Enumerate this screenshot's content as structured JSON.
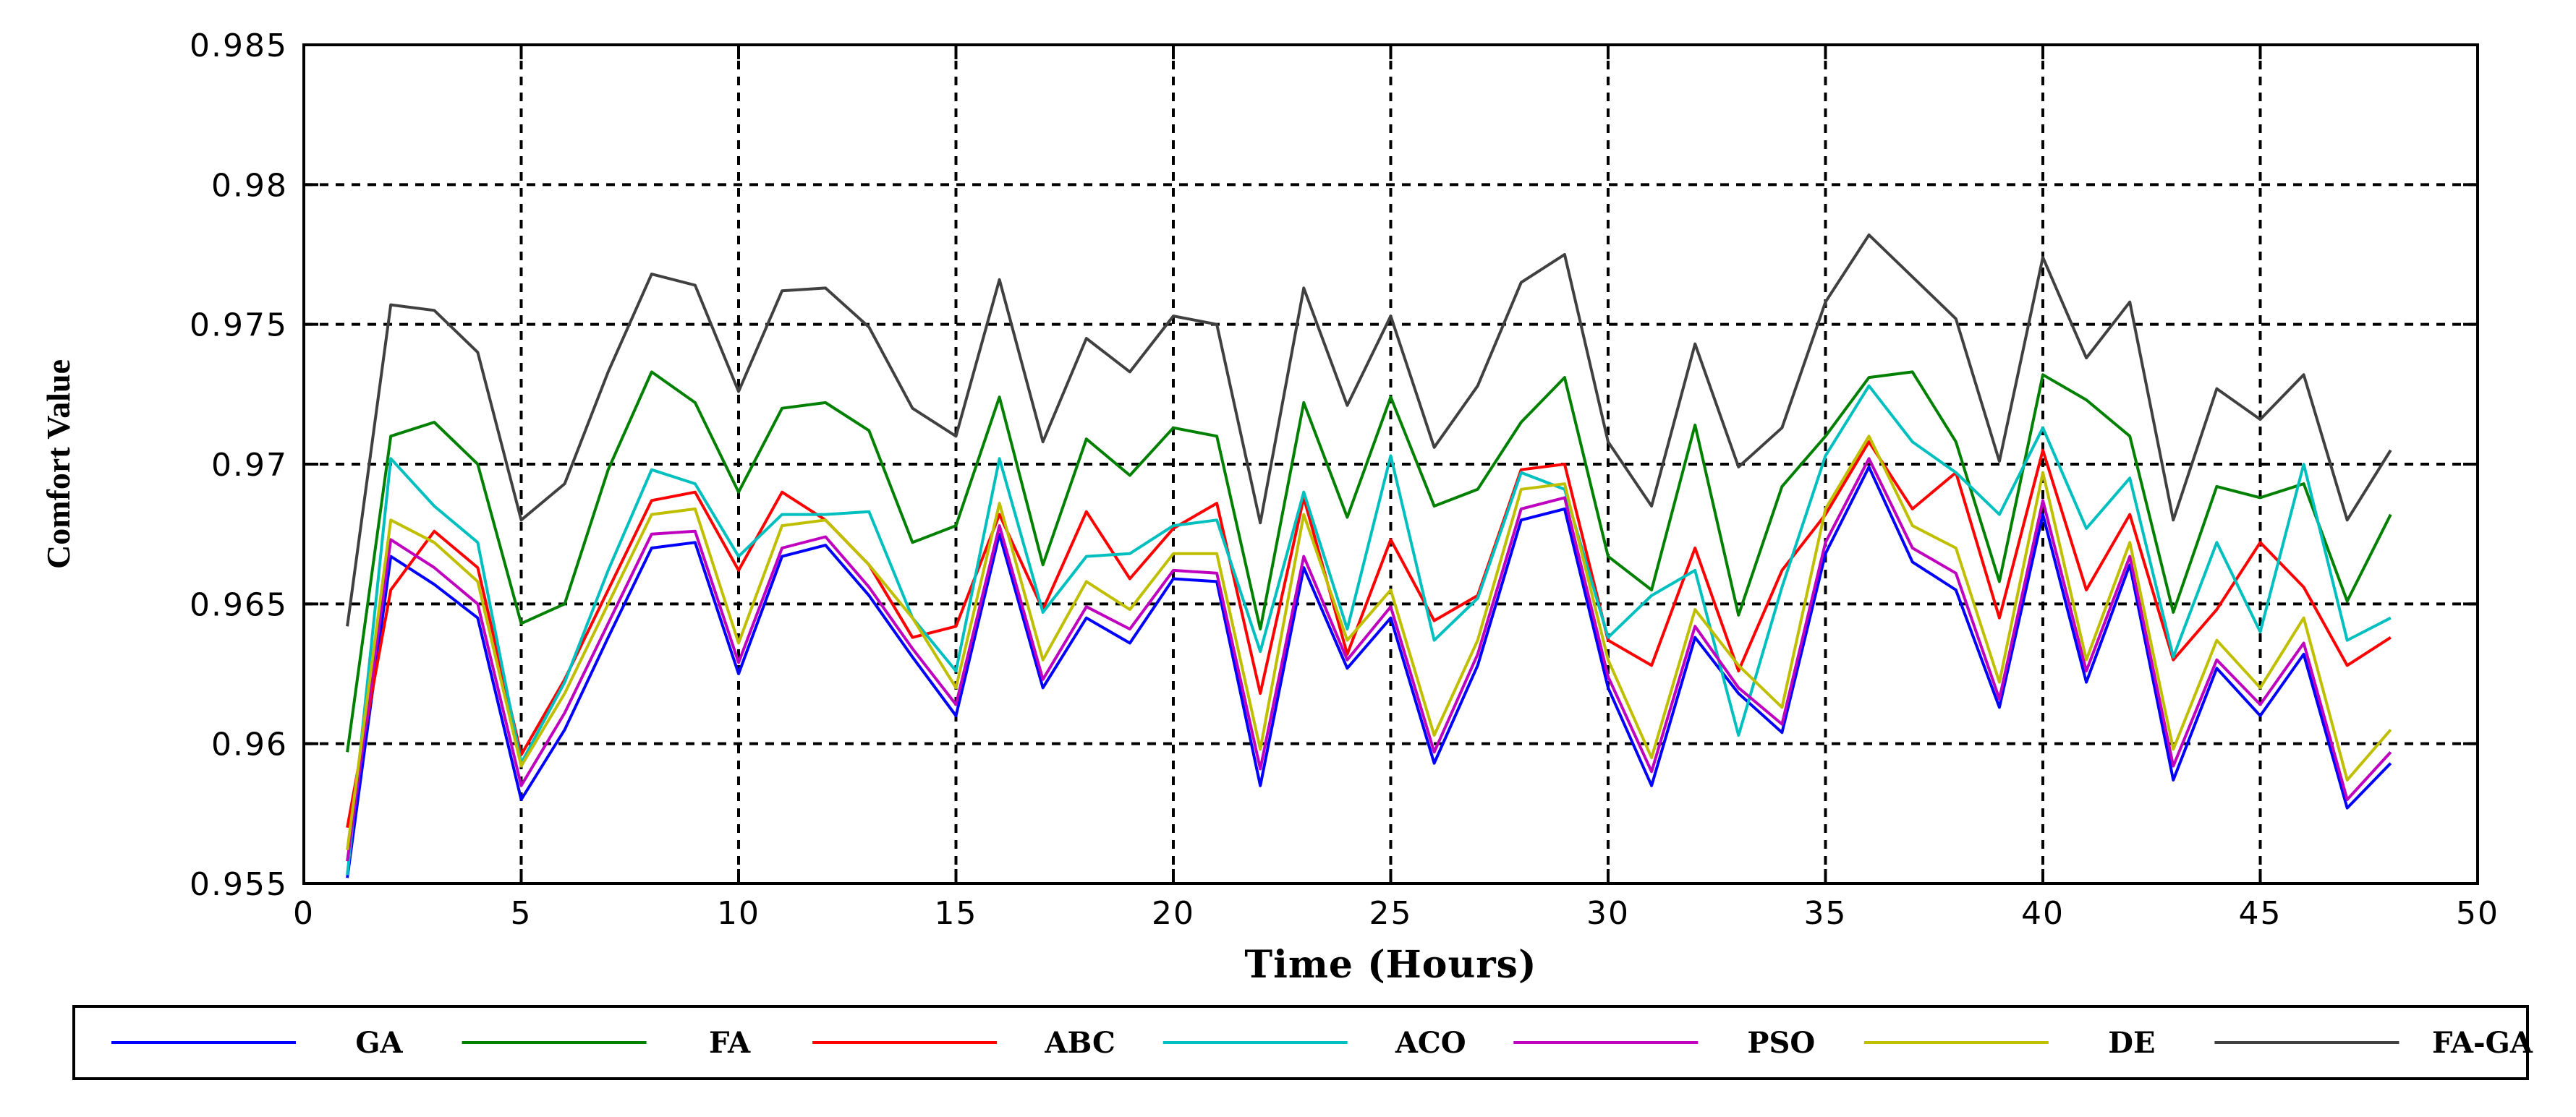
{
  "chart_data": {
    "type": "line",
    "xlabel": "Time (Hours)",
    "ylabel": "Comfort Value",
    "xlim": [
      0,
      50
    ],
    "ylim": [
      0.955,
      0.985
    ],
    "xticks": [
      "0",
      "5",
      "10",
      "15",
      "20",
      "25",
      "30",
      "35",
      "40",
      "45",
      "50"
    ],
    "yticks": [
      "0.955",
      "0.96",
      "0.965",
      "0.97",
      "0.975",
      "0.98",
      "0.985"
    ],
    "grid": true,
    "legend_position": "bottom",
    "x": [
      1,
      2,
      3,
      4,
      5,
      6,
      7,
      8,
      9,
      10,
      11,
      12,
      13,
      14,
      15,
      16,
      17,
      18,
      19,
      20,
      21,
      22,
      23,
      24,
      25,
      26,
      27,
      28,
      29,
      30,
      31,
      32,
      33,
      34,
      35,
      36,
      37,
      38,
      39,
      40,
      41,
      42,
      43,
      44,
      45,
      46,
      47,
      48
    ],
    "series": [
      {
        "name": "GA",
        "color": "#0000ff",
        "values": [
          0.9552,
          0.9667,
          0.9657,
          0.9645,
          0.958,
          0.9605,
          0.9638,
          0.967,
          0.9672,
          0.9625,
          0.9667,
          0.9671,
          0.9653,
          0.9631,
          0.961,
          0.9675,
          0.962,
          0.9645,
          0.9636,
          0.9659,
          0.9658,
          0.9585,
          0.9663,
          0.9627,
          0.9645,
          0.9593,
          0.9628,
          0.968,
          0.9684,
          0.962,
          0.9585,
          0.9638,
          0.9618,
          0.9604,
          0.9668,
          0.9699,
          0.9665,
          0.9655,
          0.9613,
          0.9682,
          0.9622,
          0.9664,
          0.9587,
          0.9627,
          0.961,
          0.9632,
          0.9577,
          0.9593
        ]
      },
      {
        "name": "FA",
        "color": "#008000",
        "values": [
          0.9597,
          0.971,
          0.9715,
          0.97,
          0.9643,
          0.965,
          0.9698,
          0.9733,
          0.9722,
          0.969,
          0.972,
          0.9722,
          0.9712,
          0.9672,
          0.9678,
          0.9724,
          0.9664,
          0.9709,
          0.9696,
          0.9713,
          0.971,
          0.9641,
          0.9722,
          0.9681,
          0.9724,
          0.9685,
          0.9691,
          0.9715,
          0.9731,
          0.9667,
          0.9655,
          0.9714,
          0.9646,
          0.9692,
          0.971,
          0.9731,
          0.9733,
          0.9708,
          0.9658,
          0.9732,
          0.9723,
          0.971,
          0.9647,
          0.9692,
          0.9688,
          0.9693,
          0.9651,
          0.9682
        ]
      },
      {
        "name": "ABC",
        "color": "#ff0000",
        "values": [
          0.957,
          0.9655,
          0.9676,
          0.9663,
          0.9596,
          0.9623,
          0.9655,
          0.9687,
          0.969,
          0.9662,
          0.969,
          0.968,
          0.9664,
          0.9638,
          0.9642,
          0.9682,
          0.9648,
          0.9683,
          0.9659,
          0.9677,
          0.9686,
          0.9618,
          0.9688,
          0.9632,
          0.9673,
          0.9644,
          0.9653,
          0.9698,
          0.97,
          0.9637,
          0.9628,
          0.967,
          0.9626,
          0.9662,
          0.9682,
          0.9708,
          0.9684,
          0.9697,
          0.9645,
          0.9705,
          0.9655,
          0.9682,
          0.963,
          0.9648,
          0.9672,
          0.9656,
          0.9628,
          0.9638
        ]
      },
      {
        "name": "ACO",
        "color": "#00bfbf",
        "values": [
          0.9553,
          0.9702,
          0.9685,
          0.9672,
          0.9593,
          0.9622,
          0.9662,
          0.9698,
          0.9693,
          0.9667,
          0.9682,
          0.9682,
          0.9683,
          0.9645,
          0.9626,
          0.9702,
          0.9647,
          0.9667,
          0.9668,
          0.9678,
          0.968,
          0.9633,
          0.969,
          0.9641,
          0.9703,
          0.9637,
          0.9652,
          0.9697,
          0.9691,
          0.9638,
          0.9653,
          0.9662,
          0.9603,
          0.9656,
          0.9703,
          0.9728,
          0.9708,
          0.9697,
          0.9682,
          0.9713,
          0.9677,
          0.9695,
          0.9631,
          0.9672,
          0.964,
          0.97,
          0.9637,
          0.9645
        ]
      },
      {
        "name": "PSO",
        "color": "#bf00bf",
        "values": [
          0.9558,
          0.9673,
          0.9663,
          0.965,
          0.9585,
          0.9611,
          0.9643,
          0.9675,
          0.9676,
          0.9629,
          0.967,
          0.9674,
          0.9656,
          0.9634,
          0.9614,
          0.9678,
          0.9623,
          0.9649,
          0.9641,
          0.9662,
          0.9661,
          0.9591,
          0.9667,
          0.963,
          0.9649,
          0.9597,
          0.9632,
          0.9684,
          0.9688,
          0.9624,
          0.959,
          0.9642,
          0.962,
          0.9607,
          0.9672,
          0.9702,
          0.967,
          0.9661,
          0.9616,
          0.9687,
          0.9626,
          0.9667,
          0.9592,
          0.963,
          0.9614,
          0.9636,
          0.958,
          0.9597
        ]
      },
      {
        "name": "DE",
        "color": "#bfbf00",
        "values": [
          0.9562,
          0.968,
          0.9672,
          0.9658,
          0.9592,
          0.9618,
          0.965,
          0.9682,
          0.9684,
          0.9636,
          0.9678,
          0.968,
          0.9664,
          0.9645,
          0.962,
          0.9686,
          0.963,
          0.9658,
          0.9648,
          0.9668,
          0.9668,
          0.9598,
          0.9682,
          0.9637,
          0.9655,
          0.9603,
          0.9637,
          0.9691,
          0.9693,
          0.963,
          0.9595,
          0.9648,
          0.9628,
          0.9613,
          0.9684,
          0.971,
          0.9678,
          0.967,
          0.9622,
          0.9697,
          0.963,
          0.9672,
          0.9598,
          0.9637,
          0.962,
          0.9645,
          0.9587,
          0.9605
        ]
      },
      {
        "name": "FA-GA",
        "color": "#404040",
        "values": [
          0.9642,
          0.9757,
          0.9755,
          0.974,
          0.968,
          0.9693,
          0.9733,
          0.9768,
          0.9764,
          0.9726,
          0.9762,
          0.9763,
          0.9749,
          0.972,
          0.971,
          0.9766,
          0.9708,
          0.9745,
          0.9733,
          0.9753,
          0.975,
          0.9679,
          0.9763,
          0.9721,
          0.9753,
          0.9706,
          0.9728,
          0.9765,
          0.9775,
          0.9708,
          0.9685,
          0.9743,
          0.9699,
          0.9713,
          0.9758,
          0.9782,
          0.9767,
          0.9752,
          0.9701,
          0.9774,
          0.9738,
          0.9758,
          0.968,
          0.9727,
          0.9716,
          0.9732,
          0.968,
          0.9705
        ]
      }
    ]
  }
}
